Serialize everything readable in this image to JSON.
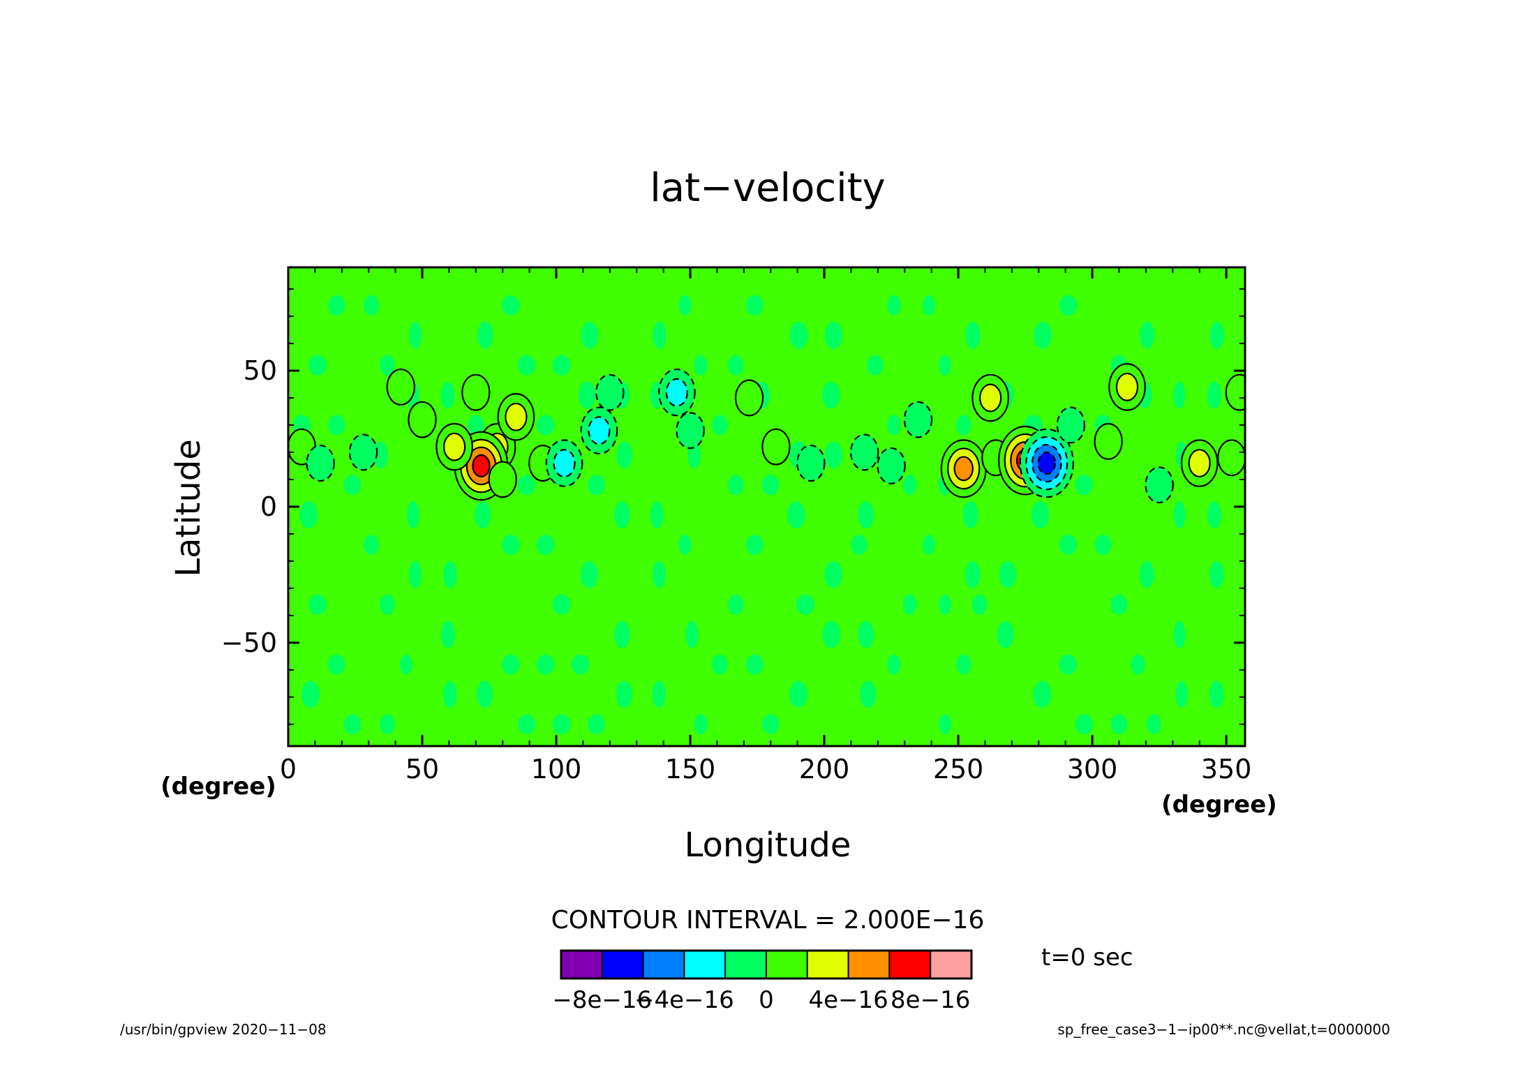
{
  "chart_data": {
    "type": "heatmap",
    "title": "lat−velocity",
    "xlabel": "Longitude",
    "ylabel": "Latitude",
    "x_unit": "(degree)",
    "y_unit": "(degree)",
    "xlim": [
      0,
      357
    ],
    "ylim": [
      -88,
      88
    ],
    "x_ticks": [
      0,
      50,
      100,
      150,
      200,
      250,
      300,
      350
    ],
    "y_ticks": [
      -50,
      0,
      50
    ],
    "x_tick_labels": [
      "0",
      "50",
      "100",
      "150",
      "200",
      "250",
      "300",
      "350"
    ],
    "y_tick_labels": [
      "−50",
      "0",
      "50"
    ],
    "contour_interval_text": "CONTOUR INTERVAL = 2.000E−16",
    "time_text": "t=0 sec",
    "colorbar": {
      "colors": [
        "#8000b0",
        "#0000ff",
        "#0080ff",
        "#00ffff",
        "#00ff60",
        "#40ff00",
        "#e0ff00",
        "#ff9000",
        "#ff0000",
        "#ffa0a0"
      ],
      "bounds": [
        -1e-15,
        -8e-16,
        -6e-16,
        -4e-16,
        -2e-16,
        0,
        2e-16,
        4e-16,
        6e-16,
        8e-16,
        1e-15
      ],
      "labels": [
        "−8e−16",
        "−4e−16",
        "0",
        "4e−16",
        "8e−16"
      ],
      "label_values": [
        -8e-16,
        -4e-16,
        0,
        4e-16,
        8e-16
      ]
    },
    "features": [
      {
        "lon": 78,
        "lat": 22,
        "value": 5e-16
      },
      {
        "lon": 72,
        "lat": 15,
        "value": 8.5e-16
      },
      {
        "lon": 62,
        "lat": 22,
        "value": 4.2e-16
      },
      {
        "lon": 80,
        "lat": 10,
        "value": 3.5e-16
      },
      {
        "lon": 85,
        "lat": 33,
        "value": 4.5e-16
      },
      {
        "lon": 70,
        "lat": 42,
        "value": 2.8e-16
      },
      {
        "lon": 42,
        "lat": 44,
        "value": 2.6e-16
      },
      {
        "lon": 50,
        "lat": 32,
        "value": 2.4e-16
      },
      {
        "lon": 5,
        "lat": 22,
        "value": 2.6e-16
      },
      {
        "lon": 95,
        "lat": 16,
        "value": 3e-16
      },
      {
        "lon": 103,
        "lat": 16,
        "value": -4.5e-16
      },
      {
        "lon": 116,
        "lat": 28,
        "value": -4.6e-16
      },
      {
        "lon": 120,
        "lat": 42,
        "value": -3.2e-16
      },
      {
        "lon": 145,
        "lat": 42,
        "value": -4.2e-16
      },
      {
        "lon": 150,
        "lat": 28,
        "value": -2.6e-16
      },
      {
        "lon": 28,
        "lat": 20,
        "value": -2.5e-16
      },
      {
        "lon": 12,
        "lat": 16,
        "value": -2.4e-16
      },
      {
        "lon": 195,
        "lat": 16,
        "value": -2.6e-16
      },
      {
        "lon": 215,
        "lat": 20,
        "value": -2.8e-16
      },
      {
        "lon": 225,
        "lat": 15,
        "value": -3.4e-16
      },
      {
        "lon": 235,
        "lat": 32,
        "value": -2.6e-16
      },
      {
        "lon": 182,
        "lat": 22,
        "value": 2.6e-16
      },
      {
        "lon": 172,
        "lat": 40,
        "value": 2.4e-16
      },
      {
        "lon": 252,
        "lat": 14,
        "value": 6.2e-16
      },
      {
        "lon": 262,
        "lat": 40,
        "value": 4.4e-16
      },
      {
        "lon": 264,
        "lat": 18,
        "value": 2.8e-16
      },
      {
        "lon": 275,
        "lat": 17,
        "value": 8.6e-16
      },
      {
        "lon": 283,
        "lat": 16,
        "value": -8.6e-16
      },
      {
        "lon": 292,
        "lat": 30,
        "value": -2.8e-16
      },
      {
        "lon": 313,
        "lat": 44,
        "value": 4.6e-16
      },
      {
        "lon": 306,
        "lat": 24,
        "value": 2.4e-16
      },
      {
        "lon": 340,
        "lat": 16,
        "value": 4.2e-16
      },
      {
        "lon": 352,
        "lat": 18,
        "value": 2.6e-16
      },
      {
        "lon": 355,
        "lat": 42,
        "value": 2.4e-16
      },
      {
        "lon": 325,
        "lat": 8,
        "value": -2.4e-16
      }
    ]
  },
  "footer": {
    "left": "/usr/bin/gpview   2020−11−08",
    "right": "sp_free_case3−1−ip00**.nc@vellat,t=0000000"
  }
}
